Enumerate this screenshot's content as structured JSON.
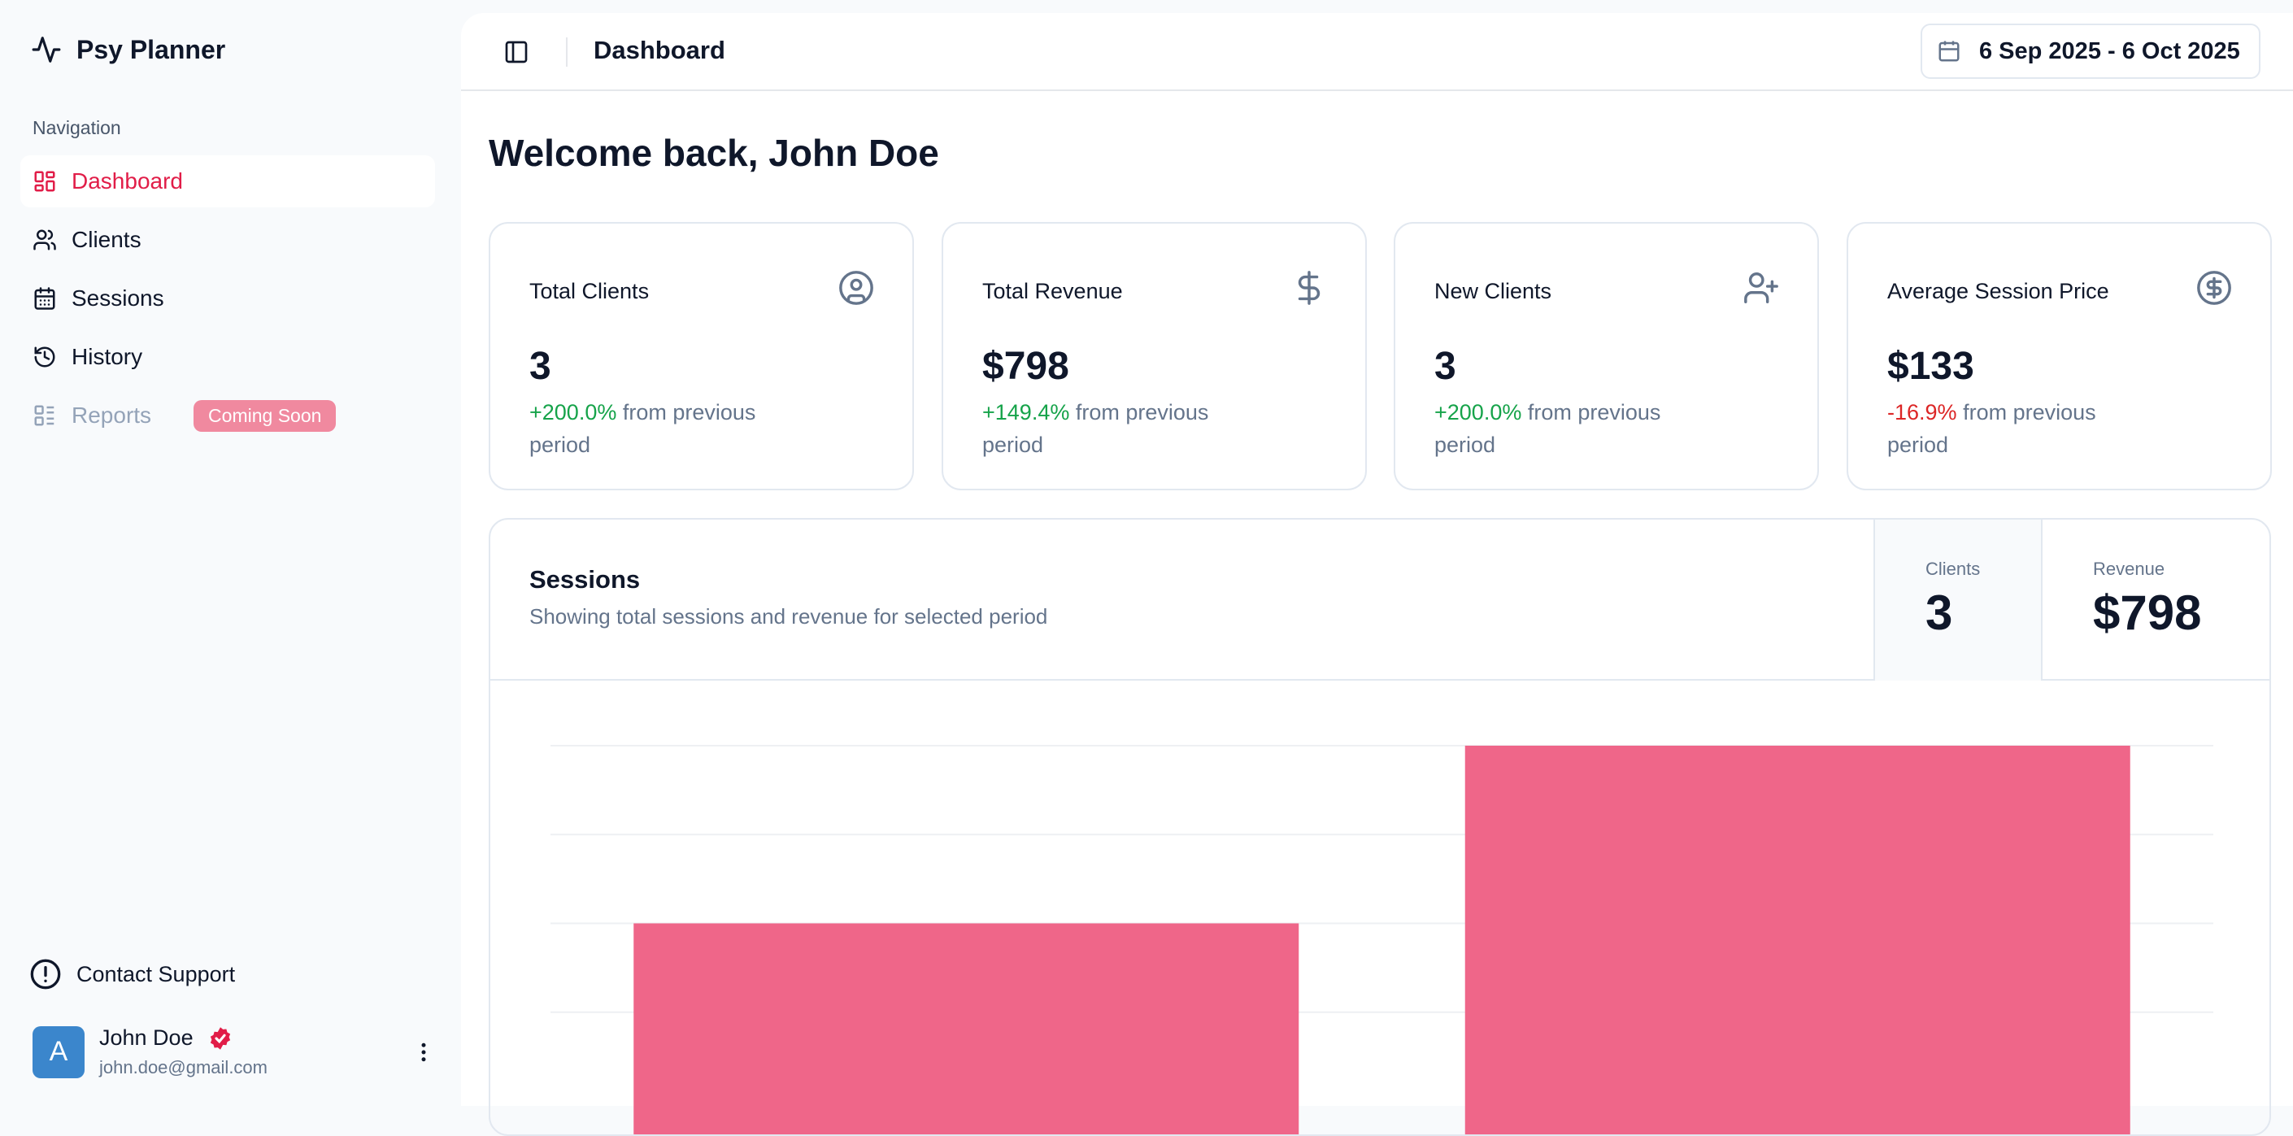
{
  "app": {
    "name": "Psy Planner"
  },
  "sidebar": {
    "section_label": "Navigation",
    "items": [
      {
        "label": "Dashboard",
        "icon": "layout-dashboard-icon",
        "active": true
      },
      {
        "label": "Clients",
        "icon": "users-icon"
      },
      {
        "label": "Sessions",
        "icon": "calendar-icon"
      },
      {
        "label": "History",
        "icon": "history-icon"
      },
      {
        "label": "Reports",
        "icon": "list-icon",
        "disabled": true,
        "badge": "Coming Soon"
      }
    ],
    "support": "Contact Support",
    "user": {
      "initial": "A",
      "name": "John Doe",
      "email": "john.doe@gmail.com",
      "verified": true
    }
  },
  "header": {
    "title": "Dashboard",
    "date_range": "6 Sep 2025 - 6 Oct 2025"
  },
  "welcome": "Welcome back, John Doe",
  "cards": [
    {
      "title": "Total Clients",
      "value": "3",
      "change": "+200.0%",
      "suffix": "from previous period",
      "trend": "up",
      "icon": "user-circle-icon"
    },
    {
      "title": "Total Revenue",
      "value": "$798",
      "change": "+149.4%",
      "suffix": "from previous period",
      "trend": "up",
      "icon": "dollar-icon"
    },
    {
      "title": "New Clients",
      "value": "3",
      "change": "+200.0%",
      "suffix": "from previous period",
      "trend": "up",
      "icon": "user-plus-icon"
    },
    {
      "title": "Average Session Price",
      "value": "$133",
      "change": "-16.9%",
      "suffix": "from previous period",
      "trend": "down",
      "icon": "circle-dollar-icon"
    }
  ],
  "sessions": {
    "title": "Sessions",
    "subtitle": "Showing total sessions and revenue for selected period",
    "stats": [
      {
        "label": "Clients",
        "value": "3"
      },
      {
        "label": "Revenue",
        "value": "$798"
      }
    ]
  },
  "colors": {
    "accent": "#e11d48",
    "bar": "#ef6689",
    "badge": "#f0899f",
    "avatar": "#3b86cc"
  },
  "chart_data": {
    "type": "bar",
    "values": [
      2,
      4
    ],
    "ylim": [
      0,
      4
    ],
    "grid": true
  }
}
